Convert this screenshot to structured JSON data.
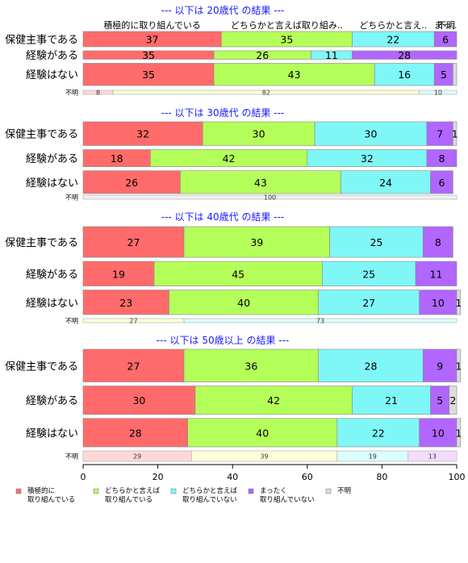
{
  "chart_data": {
    "type": "bar",
    "orientation": "horizontal",
    "stacked": "percent",
    "xlim": [
      0,
      100
    ],
    "x_ticks": [
      "0",
      "20",
      "40",
      "60",
      "80",
      "100"
    ],
    "colors": [
      "#ff6b6b",
      "#b5ff5a",
      "#7ff7f7",
      "#b066ff",
      "#dcdcdc"
    ],
    "light_colors": [
      "#ffd9d9",
      "#fcffd8",
      "#dcfefe",
      "#f3dcff",
      "#f0f0f0"
    ],
    "category_labels": [
      "積極的に取り組んでいる",
      "どちらかと言えば取り組んでいる",
      "どちらかと言えば取り組んでいない",
      "まったく取り組んでいない",
      "不明"
    ],
    "top_header_labels": [
      "積極的に取り組んでいる",
      "どちらかと言えば取り組み..",
      "どちらかと言え..",
      "まっ..",
      "不明"
    ],
    "legend": {
      "position": "bottom",
      "entries": [
        [
          "積極的に",
          "取り組んでいる"
        ],
        [
          "どちらかと言えば",
          "取り組んでいる"
        ],
        [
          "どちらかと言えば",
          "取り組んでいない"
        ],
        [
          "まったく",
          "取り組んでいない"
        ],
        [
          "不明"
        ]
      ]
    },
    "panels": [
      {
        "title": "--- 以下は 20歳代 の結果 ---",
        "rows": [
          {
            "label": "保健主事である",
            "values": [
              37,
              35,
              22,
              6,
              0
            ],
            "labels": [
              "37",
              "35",
              "22",
              "6",
              ""
            ],
            "weight": 1.0
          },
          {
            "label": "経験がある",
            "values": [
              35,
              26,
              11,
              28,
              0
            ],
            "labels": [
              "35",
              "26",
              "11",
              "28",
              ""
            ],
            "weight": 0.55
          },
          {
            "label": "経験はない",
            "values": [
              35,
              43,
              16,
              5,
              1
            ],
            "labels": [
              "35",
              "43",
              "16",
              "5",
              ""
            ],
            "weight": 1.45
          }
        ],
        "unknown": {
          "label": "不明",
          "values": [
            8,
            0,
            82,
            0,
            10
          ],
          "labels": [
            "8",
            "",
            "82",
            "",
            "10"
          ],
          "fills": [
            0,
            1,
            1,
            3,
            2
          ]
        }
      },
      {
        "title": "--- 以下は 30歳代 の結果 ---",
        "rows": [
          {
            "label": "保健主事である",
            "values": [
              32,
              30,
              30,
              7,
              1
            ],
            "labels": [
              "32",
              "30",
              "30",
              "7",
              "1"
            ],
            "weight": 1.25
          },
          {
            "label": "経験がある",
            "values": [
              18,
              42,
              32,
              8,
              0
            ],
            "labels": [
              "18",
              "42",
              "32",
              "8",
              ""
            ],
            "weight": 0.9
          },
          {
            "label": "経験はない",
            "values": [
              26,
              43,
              24,
              6,
              0
            ],
            "labels": [
              "26",
              "43",
              "24",
              "6",
              ""
            ],
            "weight": 1.2
          }
        ],
        "unknown": {
          "label": "不明",
          "values": [
            0,
            0,
            100,
            0,
            0
          ],
          "labels": [
            "",
            "",
            "100",
            "",
            ""
          ],
          "fills": [
            0,
            1,
            4,
            3,
            4
          ]
        }
      },
      {
        "title": "--- 以下は 40歳代 の結果 ---",
        "rows": [
          {
            "label": "保健主事である",
            "values": [
              27,
              39,
              25,
              8,
              0
            ],
            "labels": [
              "27",
              "39",
              "25",
              "8",
              ""
            ],
            "weight": 1.25
          },
          {
            "label": "経験がある",
            "values": [
              19,
              45,
              25,
              11,
              0
            ],
            "labels": [
              "19",
              "45",
              "25",
              "11",
              ""
            ],
            "weight": 1.0
          },
          {
            "label": "経験はない",
            "values": [
              23,
              40,
              27,
              10,
              1
            ],
            "labels": [
              "23",
              "40",
              "27",
              "10",
              "1"
            ],
            "weight": 1.0
          }
        ],
        "unknown": {
          "label": "不明",
          "values": [
            0,
            27,
            73,
            0,
            0
          ],
          "labels": [
            "",
            "27",
            "73",
            "",
            ""
          ],
          "fills": [
            0,
            1,
            2,
            3,
            4
          ]
        }
      },
      {
        "title": "--- 以下は 50歳以上 の結果 ---",
        "rows": [
          {
            "label": "保健主事である",
            "values": [
              27,
              36,
              28,
              9,
              1
            ],
            "labels": [
              "27",
              "36",
              "28",
              "9",
              "1"
            ],
            "weight": 1.15
          },
          {
            "label": "経験がある",
            "values": [
              30,
              42,
              21,
              5,
              2
            ],
            "labels": [
              "30",
              "42",
              "21",
              "5",
              "2"
            ],
            "weight": 1.0
          },
          {
            "label": "経験はない",
            "values": [
              28,
              40,
              22,
              10,
              1
            ],
            "labels": [
              "28",
              "40",
              "22",
              "10",
              "1"
            ],
            "weight": 1.0
          }
        ],
        "unknown": {
          "label": "不明",
          "values": [
            29,
            39,
            19,
            13,
            0
          ],
          "labels": [
            "29",
            "39",
            "19",
            "13",
            ""
          ],
          "fills": [
            0,
            1,
            2,
            3,
            4
          ]
        }
      }
    ]
  }
}
